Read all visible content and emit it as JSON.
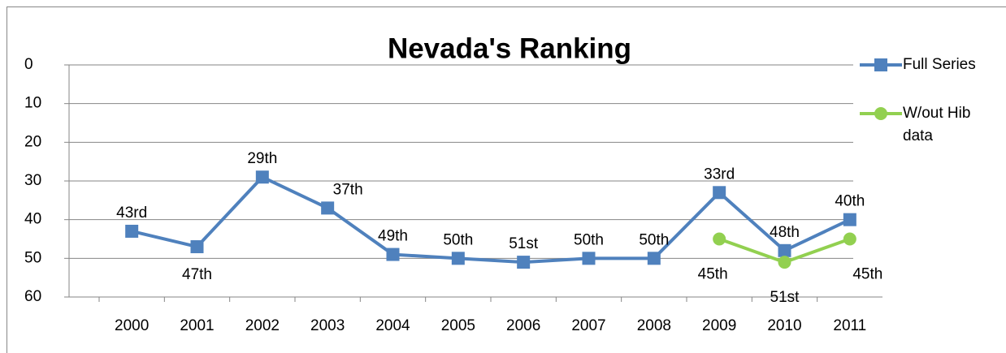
{
  "chart_data": {
    "type": "line",
    "title": "Nevada's Ranking",
    "categories": [
      "2000",
      "2001",
      "2002",
      "2003",
      "2004",
      "2005",
      "2006",
      "2007",
      "2008",
      "2009",
      "2010",
      "2011"
    ],
    "series": [
      {
        "name": "Full Series",
        "color": "#4f81bd",
        "marker": "square",
        "values": [
          43,
          47,
          29,
          37,
          49,
          50,
          51,
          50,
          50,
          33,
          48,
          40
        ],
        "value_labels": [
          "43rd",
          "47th",
          "29th",
          "37th",
          "49th",
          "50th",
          "51st",
          "50th",
          "50th",
          "33rd",
          "48th",
          "40th"
        ]
      },
      {
        "name": "W/out Hib data",
        "color": "#92d050",
        "marker": "circle",
        "values": [
          null,
          null,
          null,
          null,
          null,
          null,
          null,
          null,
          null,
          45,
          51,
          45
        ],
        "value_labels": [
          null,
          null,
          null,
          null,
          null,
          null,
          null,
          null,
          null,
          "45th",
          "51st",
          "45th"
        ]
      }
    ],
    "ylim": [
      0,
      60
    ],
    "yticks": [
      0,
      10,
      20,
      30,
      40,
      50,
      60
    ],
    "y_inverted": true,
    "grid": true,
    "legend": "right"
  }
}
